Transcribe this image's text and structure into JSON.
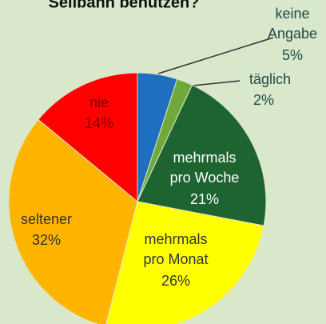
{
  "chart_data": {
    "type": "pie",
    "title": "Seilbahn benutzen?",
    "categories": [
      "keine Angabe",
      "täglich",
      "mehrmals pro Woche",
      "mehrmals pro Monat",
      "seltener",
      "nie"
    ],
    "values": [
      5,
      2,
      21,
      26,
      32,
      14
    ],
    "value_labels": [
      "5%",
      "2%",
      "21%",
      "26%",
      "32%",
      "14%"
    ],
    "colors": [
      "#1f6fc0",
      "#70a83a",
      "#1e6430",
      "#ffff00",
      "#ffb400",
      "#ff0000"
    ]
  }
}
